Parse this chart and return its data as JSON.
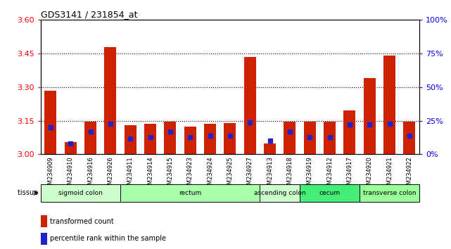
{
  "title": "GDS3141 / 231854_at",
  "samples": [
    "GSM234909",
    "GSM234910",
    "GSM234916",
    "GSM234926",
    "GSM234911",
    "GSM234914",
    "GSM234915",
    "GSM234923",
    "GSM234924",
    "GSM234925",
    "GSM234927",
    "GSM234913",
    "GSM234918",
    "GSM234919",
    "GSM234912",
    "GSM234917",
    "GSM234920",
    "GSM234921",
    "GSM234922"
  ],
  "red_values": [
    3.285,
    3.055,
    3.145,
    3.48,
    3.13,
    3.135,
    3.145,
    3.125,
    3.135,
    3.14,
    3.435,
    3.05,
    3.145,
    3.145,
    3.145,
    3.195,
    3.34,
    3.44,
    3.145
  ],
  "blue_values_pct": [
    20,
    8,
    17,
    23,
    12,
    13,
    17,
    13,
    14,
    14,
    24,
    10,
    17,
    13,
    13,
    22,
    22,
    23,
    14
  ],
  "tissue_groups": [
    {
      "label": "sigmoid colon",
      "start": 0,
      "end": 4,
      "color": "#ccffcc"
    },
    {
      "label": "rectum",
      "start": 4,
      "end": 11,
      "color": "#aaffaa"
    },
    {
      "label": "ascending colon",
      "start": 11,
      "end": 13,
      "color": "#ccffcc"
    },
    {
      "label": "cecum",
      "start": 13,
      "end": 16,
      "color": "#44ee77"
    },
    {
      "label": "transverse colon",
      "start": 16,
      "end": 19,
      "color": "#99ff99"
    }
  ],
  "ylim_left": [
    3.0,
    3.6
  ],
  "ylim_right": [
    0,
    100
  ],
  "yticks_left": [
    3.0,
    3.15,
    3.3,
    3.45,
    3.6
  ],
  "yticks_right": [
    0,
    25,
    50,
    75,
    100
  ],
  "grid_lines": [
    3.15,
    3.3,
    3.45
  ],
  "bar_color": "#cc2200",
  "blue_color": "#2222cc",
  "bar_bottom": 3.0,
  "blue_marker_size": 22
}
